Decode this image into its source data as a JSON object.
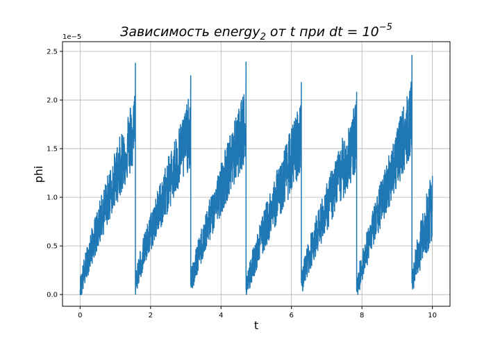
{
  "chart_data": {
    "type": "line",
    "title": "Зависимость energy",
    "title_subscript": "2",
    "title_rest": " от t при dt = 10",
    "title_superscript": "−5",
    "xlabel": "t",
    "ylabel": "phi",
    "y_offset_label": "1e−5",
    "xlim": [
      -0.5,
      10.5
    ],
    "ylim": [
      -0.12,
      2.6
    ],
    "y_scale_factor": 1e-05,
    "x_ticks": [
      0,
      2,
      4,
      6,
      8,
      10
    ],
    "x_tick_labels": [
      "0",
      "2",
      "4",
      "6",
      "8",
      "10"
    ],
    "y_ticks": [
      0.0,
      0.5,
      1.0,
      1.5,
      2.0,
      2.5
    ],
    "y_tick_labels": [
      "0.0",
      "0.5",
      "1.0",
      "1.5",
      "2.0",
      "2.5"
    ],
    "grid": true,
    "line_color": "#1f77b4",
    "series": [
      {
        "segments": [
          {
            "t_start": 0.0,
            "t_end": 1.57,
            "y_start": 0.05,
            "y_end": 1.75,
            "noise_amp": 0.45,
            "peak": 2.38
          },
          {
            "t_start": 1.57,
            "t_end": 3.14,
            "y_start": 0.12,
            "y_end": 1.72,
            "noise_amp": 0.45,
            "peak": 2.25
          },
          {
            "t_start": 3.14,
            "t_end": 4.71,
            "y_start": 0.1,
            "y_end": 1.78,
            "noise_amp": 0.45,
            "peak": 2.39
          },
          {
            "t_start": 4.71,
            "t_end": 6.28,
            "y_start": 0.05,
            "y_end": 1.65,
            "noise_amp": 0.45,
            "peak": 2.18
          },
          {
            "t_start": 6.28,
            "t_end": 7.85,
            "y_start": 0.12,
            "y_end": 1.65,
            "noise_amp": 0.45,
            "peak": 2.08
          },
          {
            "t_start": 7.85,
            "t_end": 9.42,
            "y_start": 0.05,
            "y_end": 1.85,
            "noise_amp": 0.45,
            "peak": 2.46
          },
          {
            "t_start": 9.42,
            "t_end": 10.0,
            "y_start": 0.12,
            "y_end": 0.95,
            "noise_amp": 0.45,
            "peak": 1.22
          }
        ]
      }
    ]
  }
}
